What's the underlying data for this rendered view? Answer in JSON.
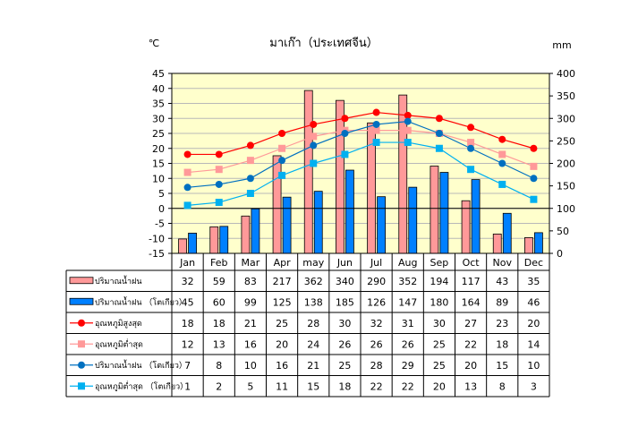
{
  "chart_data": {
    "type": "bar",
    "title": "มาเก๊า（ประเทศจีน）",
    "left_axis_unit": "℃",
    "right_axis_unit": "mm",
    "left_ylim": [
      -15,
      45
    ],
    "left_ticks": [
      "45",
      "40",
      "35",
      "30",
      "25",
      "20",
      "15",
      "10",
      "5",
      "0",
      "-5",
      "-10",
      "-15"
    ],
    "right_ylim": [
      0,
      400
    ],
    "right_ticks": [
      "400",
      "350",
      "300",
      "250",
      "200",
      "150",
      "100",
      "50",
      "0"
    ],
    "categories": [
      "Jan",
      "Feb",
      "Mar",
      "Apr",
      "may",
      "Jun",
      "Jul",
      "Aug",
      "Sep",
      "Oct",
      "Nov",
      "Dec"
    ],
    "grid": true,
    "plot_background": "#ffffcc",
    "series": [
      {
        "name": "ปริมาณน้ำฝน",
        "kind": "bar",
        "axis": "right",
        "color": "#ff9999",
        "values": [
          32,
          59,
          83,
          217,
          362,
          340,
          290,
          352,
          194,
          117,
          43,
          35
        ]
      },
      {
        "name": "ปริมาณน้ำฝน （โตเกียว）",
        "kind": "bar",
        "axis": "right",
        "color": "#0080ff",
        "values": [
          45,
          60,
          99,
          125,
          138,
          185,
          126,
          147,
          180,
          164,
          89,
          46
        ]
      },
      {
        "name": "อุณหภูมิสูงสุด",
        "kind": "line",
        "axis": "left",
        "color": "#ff0000",
        "line_color": "#ff0000",
        "marker": "circle",
        "values": [
          18,
          18,
          21,
          25,
          28,
          30,
          32,
          31,
          30,
          27,
          23,
          20
        ]
      },
      {
        "name": "อุณหภูมิต่ำสุด",
        "kind": "line",
        "axis": "left",
        "color": "#ff9999",
        "line_color": "#ff9999",
        "marker": "square",
        "values": [
          12,
          13,
          16,
          20,
          24,
          26,
          26,
          26,
          25,
          22,
          18,
          14
        ]
      },
      {
        "name": "ปริมาณน้ำฝน （โตเกียว）",
        "kind": "line",
        "axis": "left",
        "color": "#0070c0",
        "line_color": "#0070c0",
        "marker": "circle",
        "values": [
          7,
          8,
          10,
          16,
          21,
          25,
          28,
          29,
          25,
          20,
          15,
          10
        ]
      },
      {
        "name": "อุณหภูมิต่ำสุด （โตเกียว）",
        "kind": "line",
        "axis": "left",
        "color": "#00b0f0",
        "line_color": "#00b0f0",
        "marker": "square",
        "values": [
          1,
          2,
          5,
          11,
          15,
          18,
          22,
          22,
          20,
          13,
          8,
          3
        ]
      }
    ]
  }
}
